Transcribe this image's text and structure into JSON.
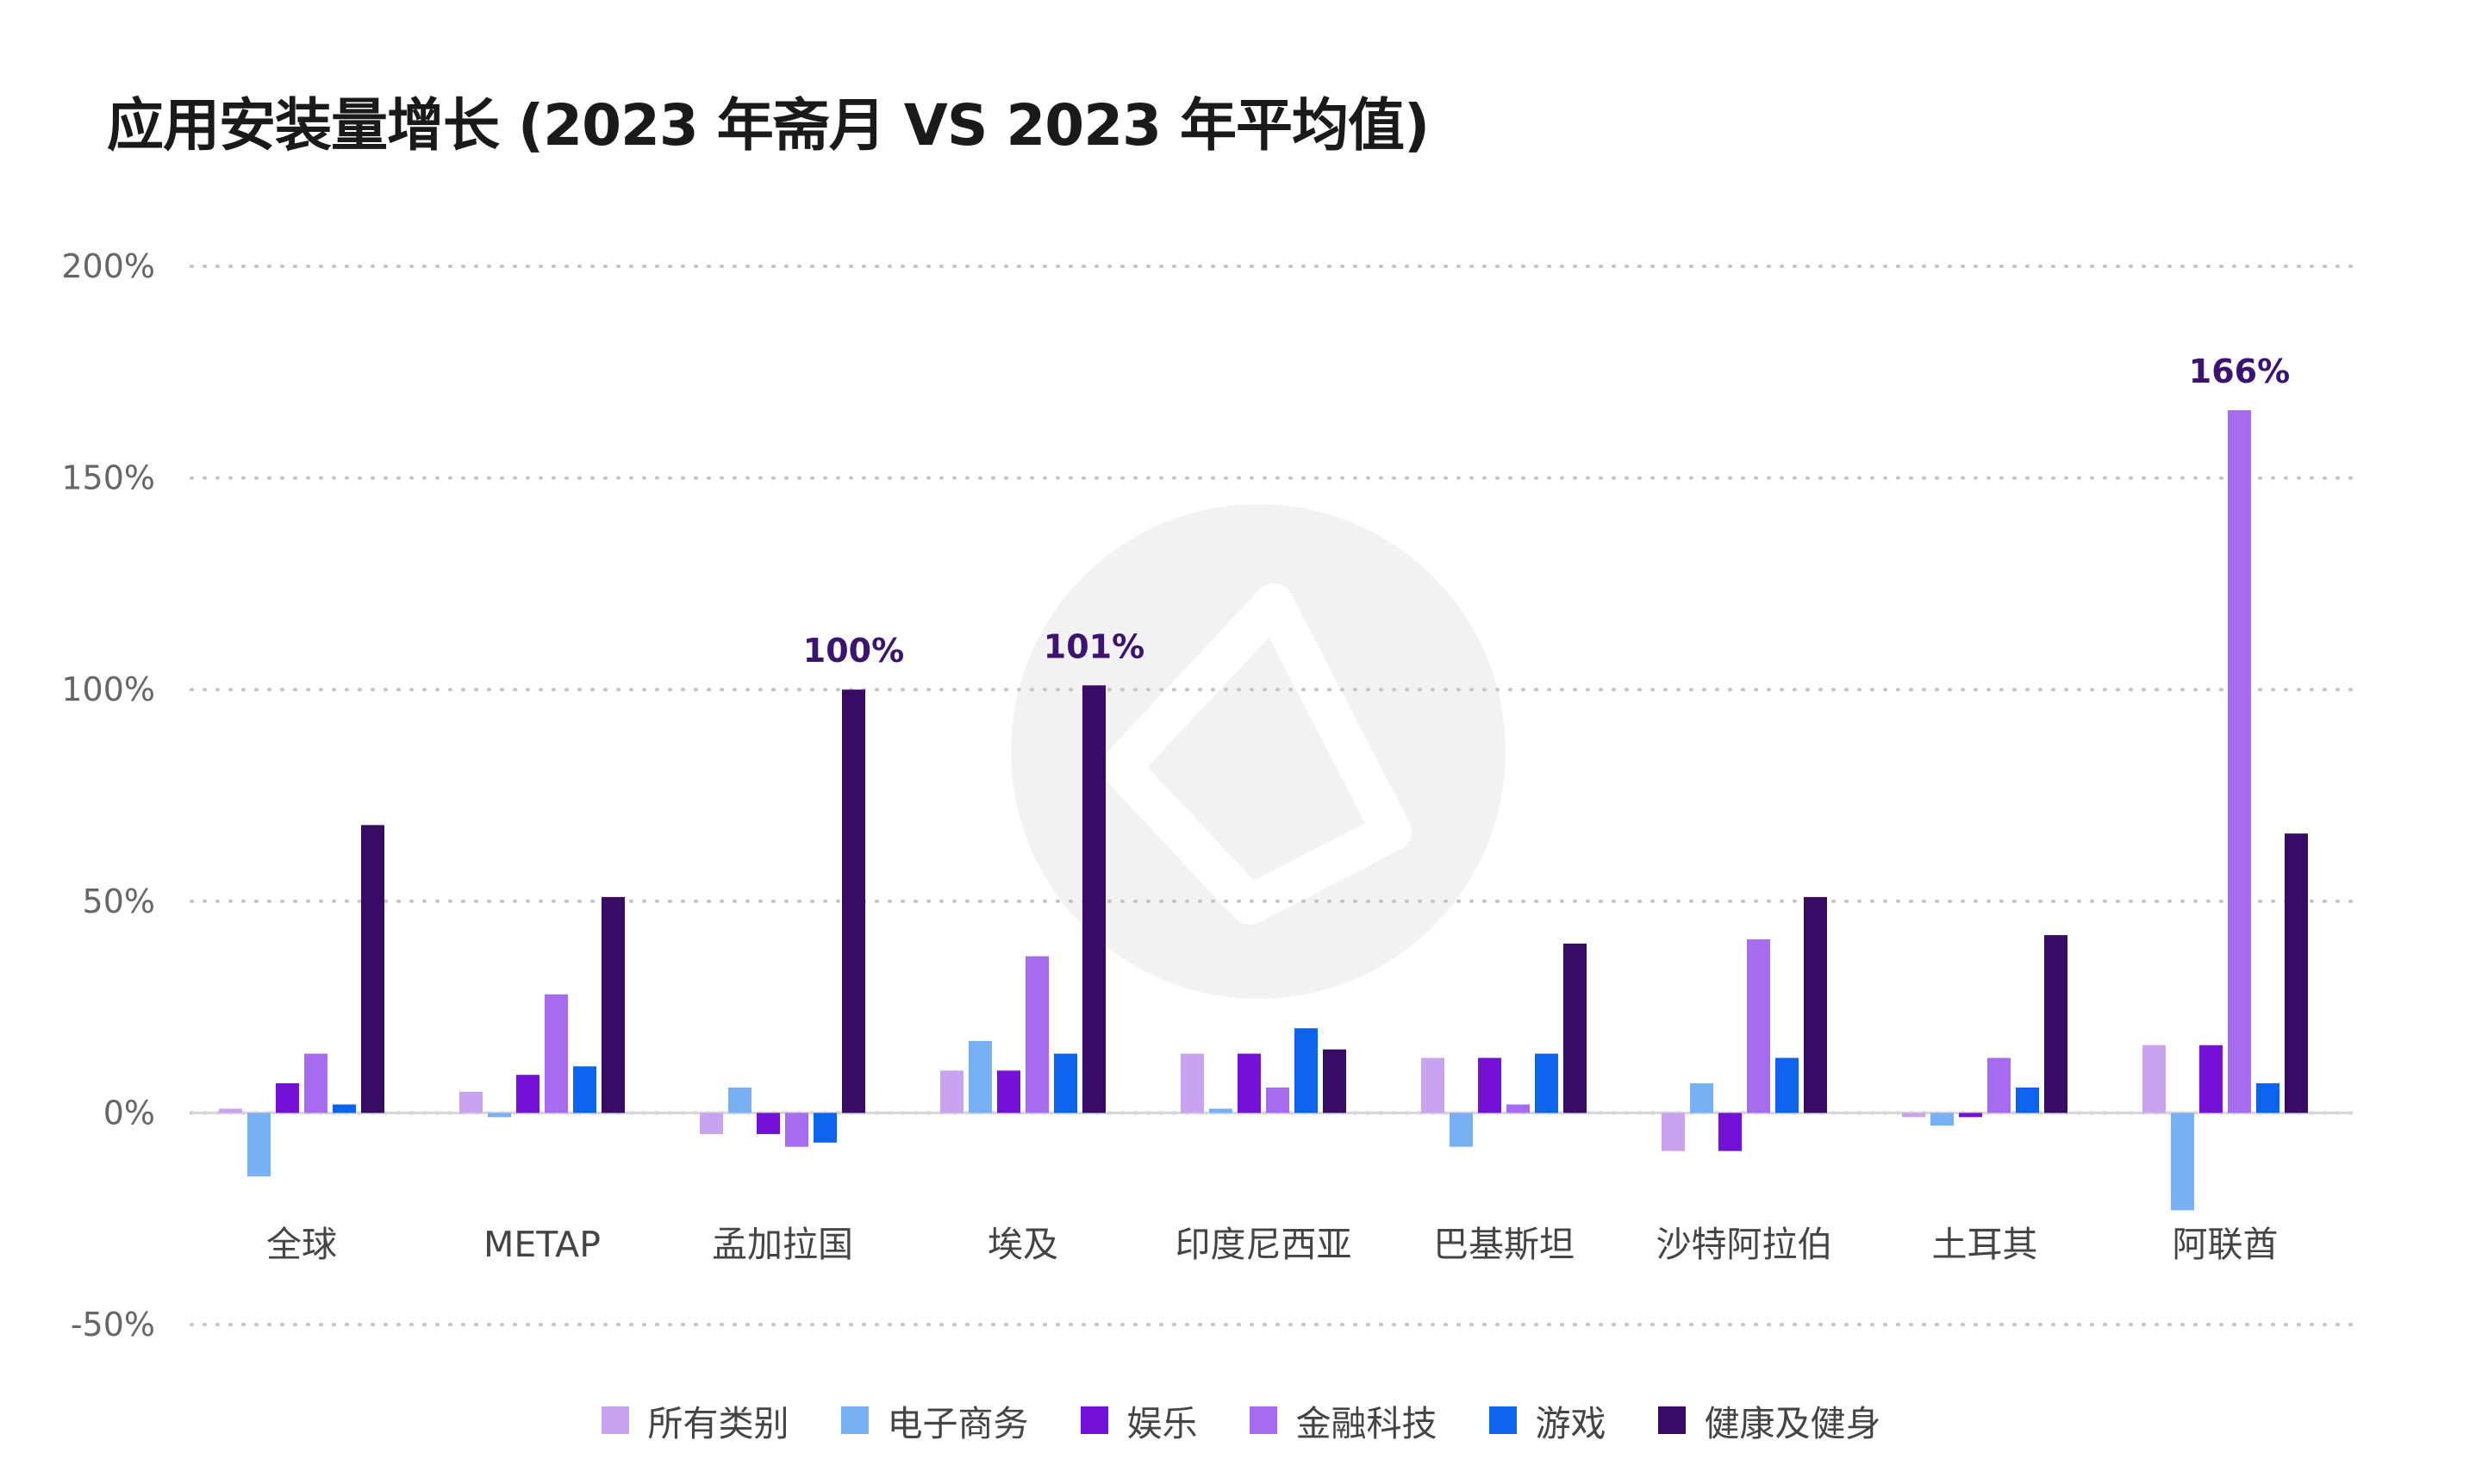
{
  "chart_data": {
    "type": "bar",
    "title": "应用安装量增长 (2023 年斋月 VS 2023 年平均值)",
    "xlabel": "",
    "ylabel": "",
    "ylim": [
      -50,
      200
    ],
    "yticks": [
      200,
      150,
      100,
      50,
      0,
      -50
    ],
    "ytick_labels": [
      "200%",
      "150%",
      "100%",
      "50%",
      "0%",
      "-50%"
    ],
    "grid": true,
    "legend_position": "bottom",
    "categories": [
      "全球",
      "METAP",
      "孟加拉国",
      "埃及",
      "印度尼西亚",
      "巴基斯坦",
      "沙特阿拉伯",
      "土耳其",
      "阿联酋"
    ],
    "series": [
      {
        "name": "所有类别",
        "color": "#c9a2f0",
        "values": [
          1,
          5,
          -5,
          10,
          14,
          13,
          -9,
          -1,
          16
        ]
      },
      {
        "name": "电子商务",
        "color": "#78b0f5",
        "values": [
          -15,
          -1,
          6,
          17,
          1,
          -8,
          7,
          -3,
          -23
        ]
      },
      {
        "name": "娱乐",
        "color": "#7311d6",
        "values": [
          7,
          9,
          -5,
          10,
          14,
          13,
          -9,
          -1,
          16
        ]
      },
      {
        "name": "金融科技",
        "color": "#a66cf0",
        "values": [
          14,
          28,
          -8,
          37,
          6,
          2,
          41,
          13,
          166
        ]
      },
      {
        "name": "游戏",
        "color": "#0b63f0",
        "values": [
          2,
          11,
          -7,
          14,
          20,
          14,
          13,
          6,
          7
        ]
      },
      {
        "name": "健康及健身",
        "color": "#370b66",
        "values": [
          68,
          51,
          100,
          101,
          15,
          40,
          51,
          42,
          66
        ]
      }
    ],
    "annotations": [
      {
        "category": "孟加拉国",
        "series": "健康及健身",
        "text": "100%"
      },
      {
        "category": "埃及",
        "series": "健康及健身",
        "text": "101%"
      },
      {
        "category": "阿联酋",
        "series": "金融科技",
        "text": "166%"
      }
    ]
  }
}
